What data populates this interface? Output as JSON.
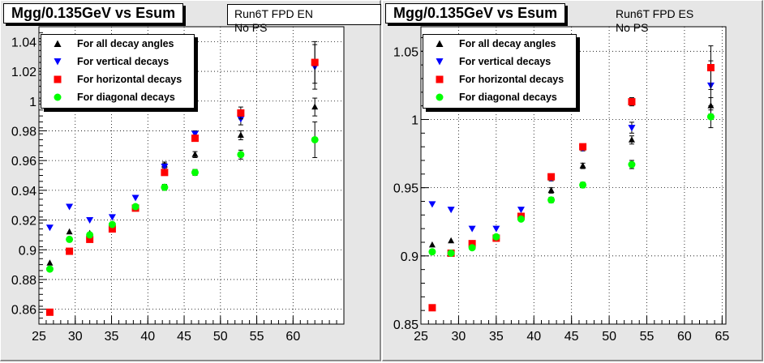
{
  "panels": [
    {
      "title": "Mgg/0.135GeV vs Esum",
      "run_label": "Run6T FPD EN",
      "run_sub": "No PS",
      "legend": [
        {
          "label": "For all decay angles",
          "marker": "triangle-up",
          "color": "#000000"
        },
        {
          "label": "For vertical decays",
          "marker": "triangle-down",
          "color": "#0000ff"
        },
        {
          "label": "For horizontal decays",
          "marker": "square",
          "color": "#ff0000"
        },
        {
          "label": "For diagonal decays",
          "marker": "circle",
          "color": "#00ff00"
        }
      ]
    },
    {
      "title": "Mgg/0.135GeV vs Esum",
      "run_label": "Run6T FPD ES",
      "run_sub": "No PS",
      "legend": [
        {
          "label": "For all decay angles",
          "marker": "triangle-up",
          "color": "#000000"
        },
        {
          "label": "For vertical decays",
          "marker": "triangle-down",
          "color": "#0000ff"
        },
        {
          "label": "For horizontal decays",
          "marker": "square",
          "color": "#ff0000"
        },
        {
          "label": "For diagonal decays",
          "marker": "circle",
          "color": "#00ff00"
        }
      ]
    }
  ],
  "chart_data": [
    {
      "type": "scatter",
      "title": "Mgg/0.135GeV vs Esum",
      "xlim": [
        25,
        67
      ],
      "ylim": [
        0.85,
        1.05
      ],
      "x_ticks": [
        25,
        30,
        35,
        40,
        45,
        50,
        55,
        60
      ],
      "y_ticks": [
        0.86,
        0.88,
        0.9,
        0.92,
        0.94,
        0.96,
        0.98,
        1,
        1.02,
        1.04
      ],
      "grid": true,
      "series": [
        {
          "name": "For all decay angles",
          "marker": "triangle-up",
          "color": "#000000",
          "x": [
            26.5,
            29.2,
            32.0,
            35.1,
            38.3,
            42.3,
            46.5,
            52.8,
            63.0
          ],
          "y": [
            0.891,
            0.912,
            0.911,
            0.916,
            0.928,
            0.957,
            0.964,
            0.977,
            0.996
          ],
          "err": [
            0.001,
            0.001,
            0.001,
            0.001,
            0.001,
            0.002,
            0.002,
            0.003,
            0.006
          ]
        },
        {
          "name": "For vertical decays",
          "marker": "triangle-down",
          "color": "#0000ff",
          "x": [
            26.5,
            29.2,
            32.0,
            35.1,
            38.3,
            42.3,
            46.5,
            52.8,
            63.0
          ],
          "y": [
            0.915,
            0.929,
            0.92,
            0.922,
            0.935,
            0.956,
            0.978,
            0.988,
            1.023
          ],
          "err": [
            0.001,
            0.001,
            0.001,
            0.001,
            0.001,
            0.002,
            0.002,
            0.004,
            0.015
          ]
        },
        {
          "name": "For horizontal decays",
          "marker": "square",
          "color": "#ff0000",
          "x": [
            26.5,
            29.2,
            32.0,
            35.1,
            38.3,
            42.3,
            46.5,
            52.8,
            63.0
          ],
          "y": [
            0.858,
            0.899,
            0.907,
            0.914,
            0.928,
            0.952,
            0.975,
            0.992,
            1.026
          ],
          "err": [
            0.001,
            0.001,
            0.001,
            0.001,
            0.001,
            0.002,
            0.002,
            0.004,
            0.014
          ]
        },
        {
          "name": "For diagonal decays",
          "marker": "circle",
          "color": "#00ff00",
          "x": [
            26.5,
            29.2,
            32.0,
            35.1,
            38.3,
            42.3,
            46.5,
            52.8,
            63.0
          ],
          "y": [
            0.887,
            0.907,
            0.91,
            0.917,
            0.929,
            0.942,
            0.952,
            0.964,
            0.974
          ],
          "err": [
            0.001,
            0.001,
            0.001,
            0.001,
            0.001,
            0.002,
            0.002,
            0.003,
            0.012
          ]
        }
      ]
    },
    {
      "type": "scatter",
      "title": "Mgg/0.135GeV vs Esum",
      "xlim": [
        25,
        65.5
      ],
      "ylim": [
        0.85,
        1.068
      ],
      "x_ticks": [
        25,
        30,
        35,
        40,
        45,
        50,
        55,
        60,
        65
      ],
      "y_ticks": [
        0.85,
        0.9,
        0.95,
        1,
        1.05
      ],
      "grid": true,
      "series": [
        {
          "name": "For all decay angles",
          "marker": "triangle-up",
          "color": "#000000",
          "x": [
            26.5,
            29.0,
            31.8,
            35.0,
            38.3,
            42.3,
            46.5,
            53.0,
            63.5
          ],
          "y": [
            0.908,
            0.911,
            0.909,
            0.913,
            0.929,
            0.948,
            0.966,
            0.985,
            1.01
          ],
          "err": [
            0.001,
            0.001,
            0.001,
            0.001,
            0.001,
            0.002,
            0.002,
            0.003,
            0.006
          ]
        },
        {
          "name": "For vertical decays",
          "marker": "triangle-down",
          "color": "#0000ff",
          "x": [
            26.5,
            29.0,
            31.8,
            35.0,
            38.3,
            42.3,
            46.5,
            53.0,
            63.5
          ],
          "y": [
            0.938,
            0.934,
            0.92,
            0.92,
            0.934,
            0.957,
            0.979,
            0.994,
            1.025
          ],
          "err": [
            0.001,
            0.001,
            0.001,
            0.001,
            0.001,
            0.002,
            0.002,
            0.004,
            0.018
          ]
        },
        {
          "name": "For horizontal decays",
          "marker": "square",
          "color": "#ff0000",
          "x": [
            26.5,
            29.0,
            31.8,
            35.0,
            38.3,
            42.3,
            46.5,
            53.0,
            63.5
          ],
          "y": [
            0.862,
            0.902,
            0.909,
            0.913,
            0.929,
            0.958,
            0.98,
            1.013,
            1.038
          ],
          "err": [
            0.001,
            0.001,
            0.001,
            0.001,
            0.001,
            0.002,
            0.002,
            0.003,
            0.016
          ]
        },
        {
          "name": "For diagonal decays",
          "marker": "circle",
          "color": "#00ff00",
          "x": [
            26.5,
            29.0,
            31.8,
            35.0,
            38.3,
            42.3,
            46.5,
            53.0,
            63.5
          ],
          "y": [
            0.903,
            0.902,
            0.906,
            0.914,
            0.927,
            0.941,
            0.952,
            0.967,
            1.002
          ],
          "err": [
            0.001,
            0.001,
            0.001,
            0.001,
            0.001,
            0.002,
            0.002,
            0.003,
            0.008
          ]
        }
      ]
    }
  ]
}
